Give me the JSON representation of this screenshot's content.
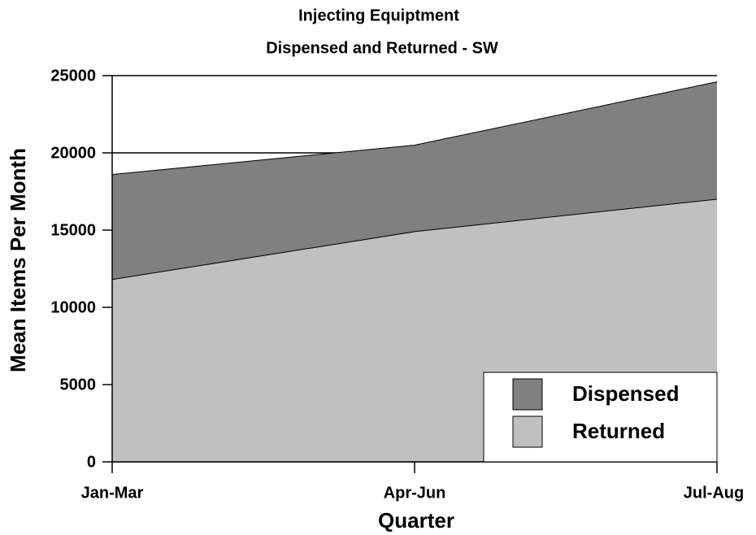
{
  "chart_data": {
    "type": "area",
    "title": "Injecting Equiptment",
    "subtitle": "Dispensed and Returned - SW",
    "x_label": "Quarter",
    "y_label": "Mean Items Per Month",
    "categories": [
      "Jan-Mar",
      "Apr-Jun",
      "Jul-Aug"
    ],
    "series": [
      {
        "name": "Dispensed",
        "color": "#808080",
        "values": [
          18600,
          20500,
          24600
        ]
      },
      {
        "name": "Returned",
        "color": "#c0c0c0",
        "values": [
          11800,
          14900,
          17000
        ]
      }
    ],
    "ylim": [
      0,
      25000
    ],
    "yticks": [
      0,
      5000,
      10000,
      15000,
      20000,
      25000
    ],
    "grid": true,
    "legend": "bottom-right"
  }
}
